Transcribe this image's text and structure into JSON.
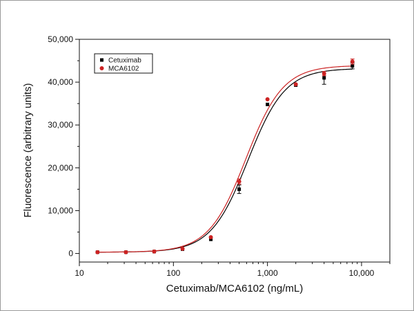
{
  "chart_data": {
    "type": "scatter",
    "xlabel": "Cetuximab/MCA6102 (ng/mL)",
    "ylabel": "Fluorescence (arbitrary units)",
    "x_scale": "log",
    "xlim": [
      10,
      20000
    ],
    "ylim": [
      -2000,
      50000
    ],
    "x_ticks": [
      10,
      100,
      1000,
      10000
    ],
    "x_tick_labels": [
      "10",
      "100",
      "1,000",
      "10,000"
    ],
    "y_ticks": [
      0,
      10000,
      20000,
      30000,
      40000,
      50000
    ],
    "y_tick_labels": [
      "0",
      "10,000",
      "20,000",
      "30,000",
      "40,000",
      "50,000"
    ],
    "grid": false,
    "legend_position": "top-left",
    "series": [
      {
        "name": "Cetuximab",
        "color": "#000000",
        "marker": "square",
        "x": [
          15.6,
          31.25,
          62.5,
          125,
          250,
          500,
          1000,
          2000,
          4000,
          8000
        ],
        "y": [
          300,
          300,
          450,
          1000,
          3300,
          15000,
          34800,
          39300,
          41000,
          43800
        ],
        "error": [
          0,
          0,
          0,
          0,
          0,
          1000,
          0,
          0,
          1500,
          700
        ],
        "fit": {
          "bottom": 300,
          "top": 43200,
          "ec50": 620,
          "hill": 2.2
        }
      },
      {
        "name": "MCA6102",
        "color": "#cc2222",
        "marker": "circle",
        "x": [
          15.6,
          31.25,
          62.5,
          125,
          250,
          500,
          1000,
          2000,
          4000,
          8000
        ],
        "y": [
          300,
          300,
          450,
          1100,
          3800,
          16800,
          36000,
          39500,
          42000,
          44800
        ],
        "error": [
          0,
          0,
          0,
          0,
          0,
          600,
          0,
          0,
          500,
          600
        ],
        "fit": {
          "bottom": 300,
          "top": 43900,
          "ec50": 590,
          "hill": 2.2
        }
      }
    ]
  }
}
